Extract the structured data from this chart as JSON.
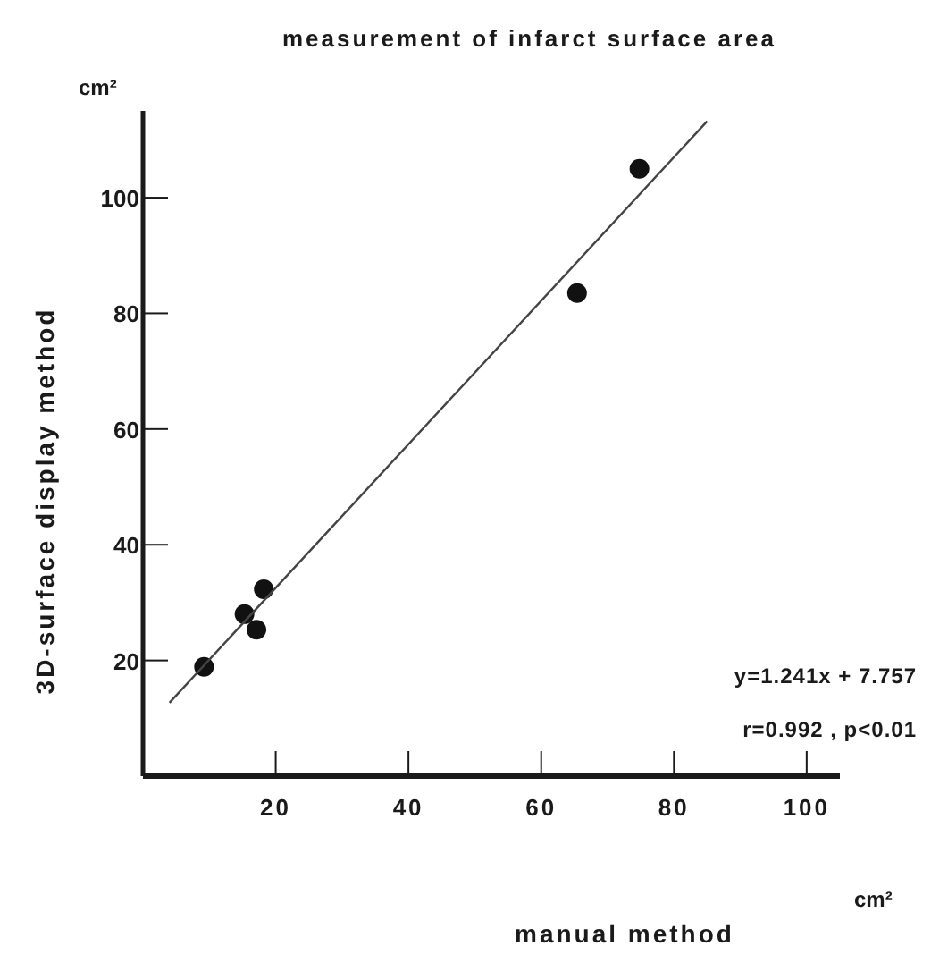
{
  "chart_data": {
    "type": "scatter",
    "title": "measurement of infarct surface area",
    "xlabel": "manual method",
    "ylabel": "3D-surface display method",
    "x": [
      9.2,
      15.3,
      17.1,
      18.2,
      65.4,
      74.8
    ],
    "series": [
      {
        "color": "#111111",
        "values": [
          18.9,
          28,
          25.3,
          32.3,
          83.5,
          105
        ]
      },
      {
        "type": "line",
        "marker": "none",
        "color": "#444444",
        "x": [
          4,
          85
        ],
        "values": [
          12.7,
          113.2
        ]
      }
    ],
    "marker": "circle",
    "grid": false,
    "legend": false,
    "xlim": [
      0,
      105
    ],
    "xticks": [
      20,
      40,
      60,
      80,
      100
    ],
    "ylim": [
      0,
      115
    ],
    "yticks": [
      20,
      40,
      60,
      80,
      100
    ],
    "annotations": [
      "cm²",
      "cm²",
      "y=1.241x + 7.757",
      "r=0.992 , p<0.01"
    ]
  }
}
